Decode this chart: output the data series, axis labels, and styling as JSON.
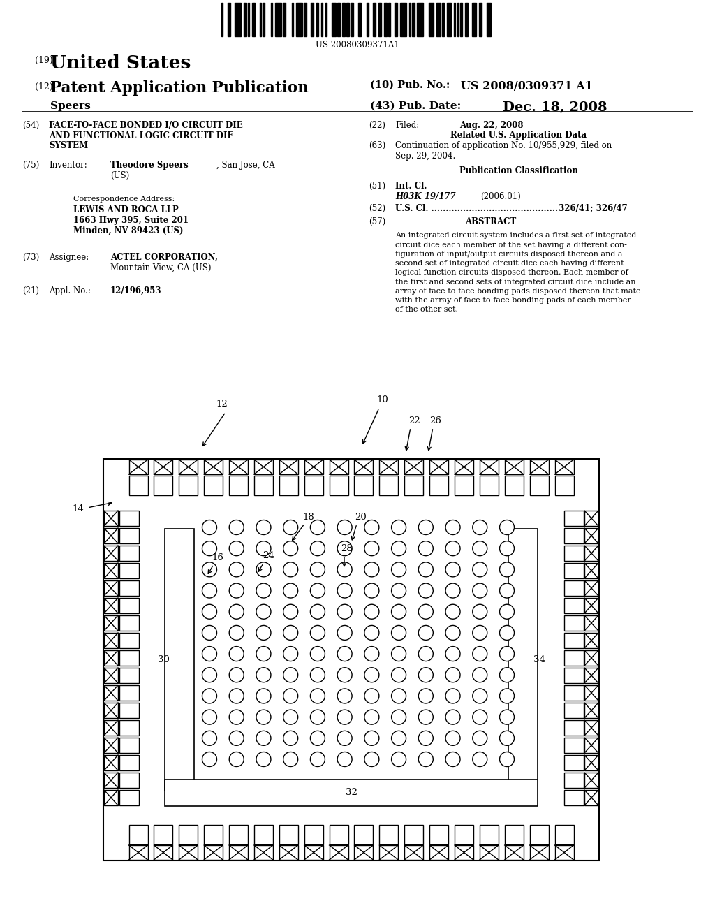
{
  "background_color": "#ffffff",
  "page_width": 10.24,
  "page_height": 13.2,
  "barcode_text": "US 20080309371A1",
  "title_country": "United States",
  "title_type": "Patent Application Publication",
  "title_pub_no": "(10) Pub. No.:  US 2008/0309371 A1",
  "title_inventor_last": "Speers",
  "title_pub_date_label": "(43) Pub. Date:",
  "title_date": "Dec. 18, 2008",
  "abstract_lines": [
    "An integrated circuit system includes a first set of integrated",
    "circuit dice each member of the set having a different con-",
    "figuration of input/output circuits disposed thereon and a",
    "second set of integrated circuit dice each having different",
    "logical function circuits disposed thereon. Each member of",
    "the first and second sets of integrated circuit dice include an",
    "array of face-to-face bonding pads disposed thereon that mate",
    "with the array of face-to-face bonding pads of each member",
    "of the other set."
  ]
}
